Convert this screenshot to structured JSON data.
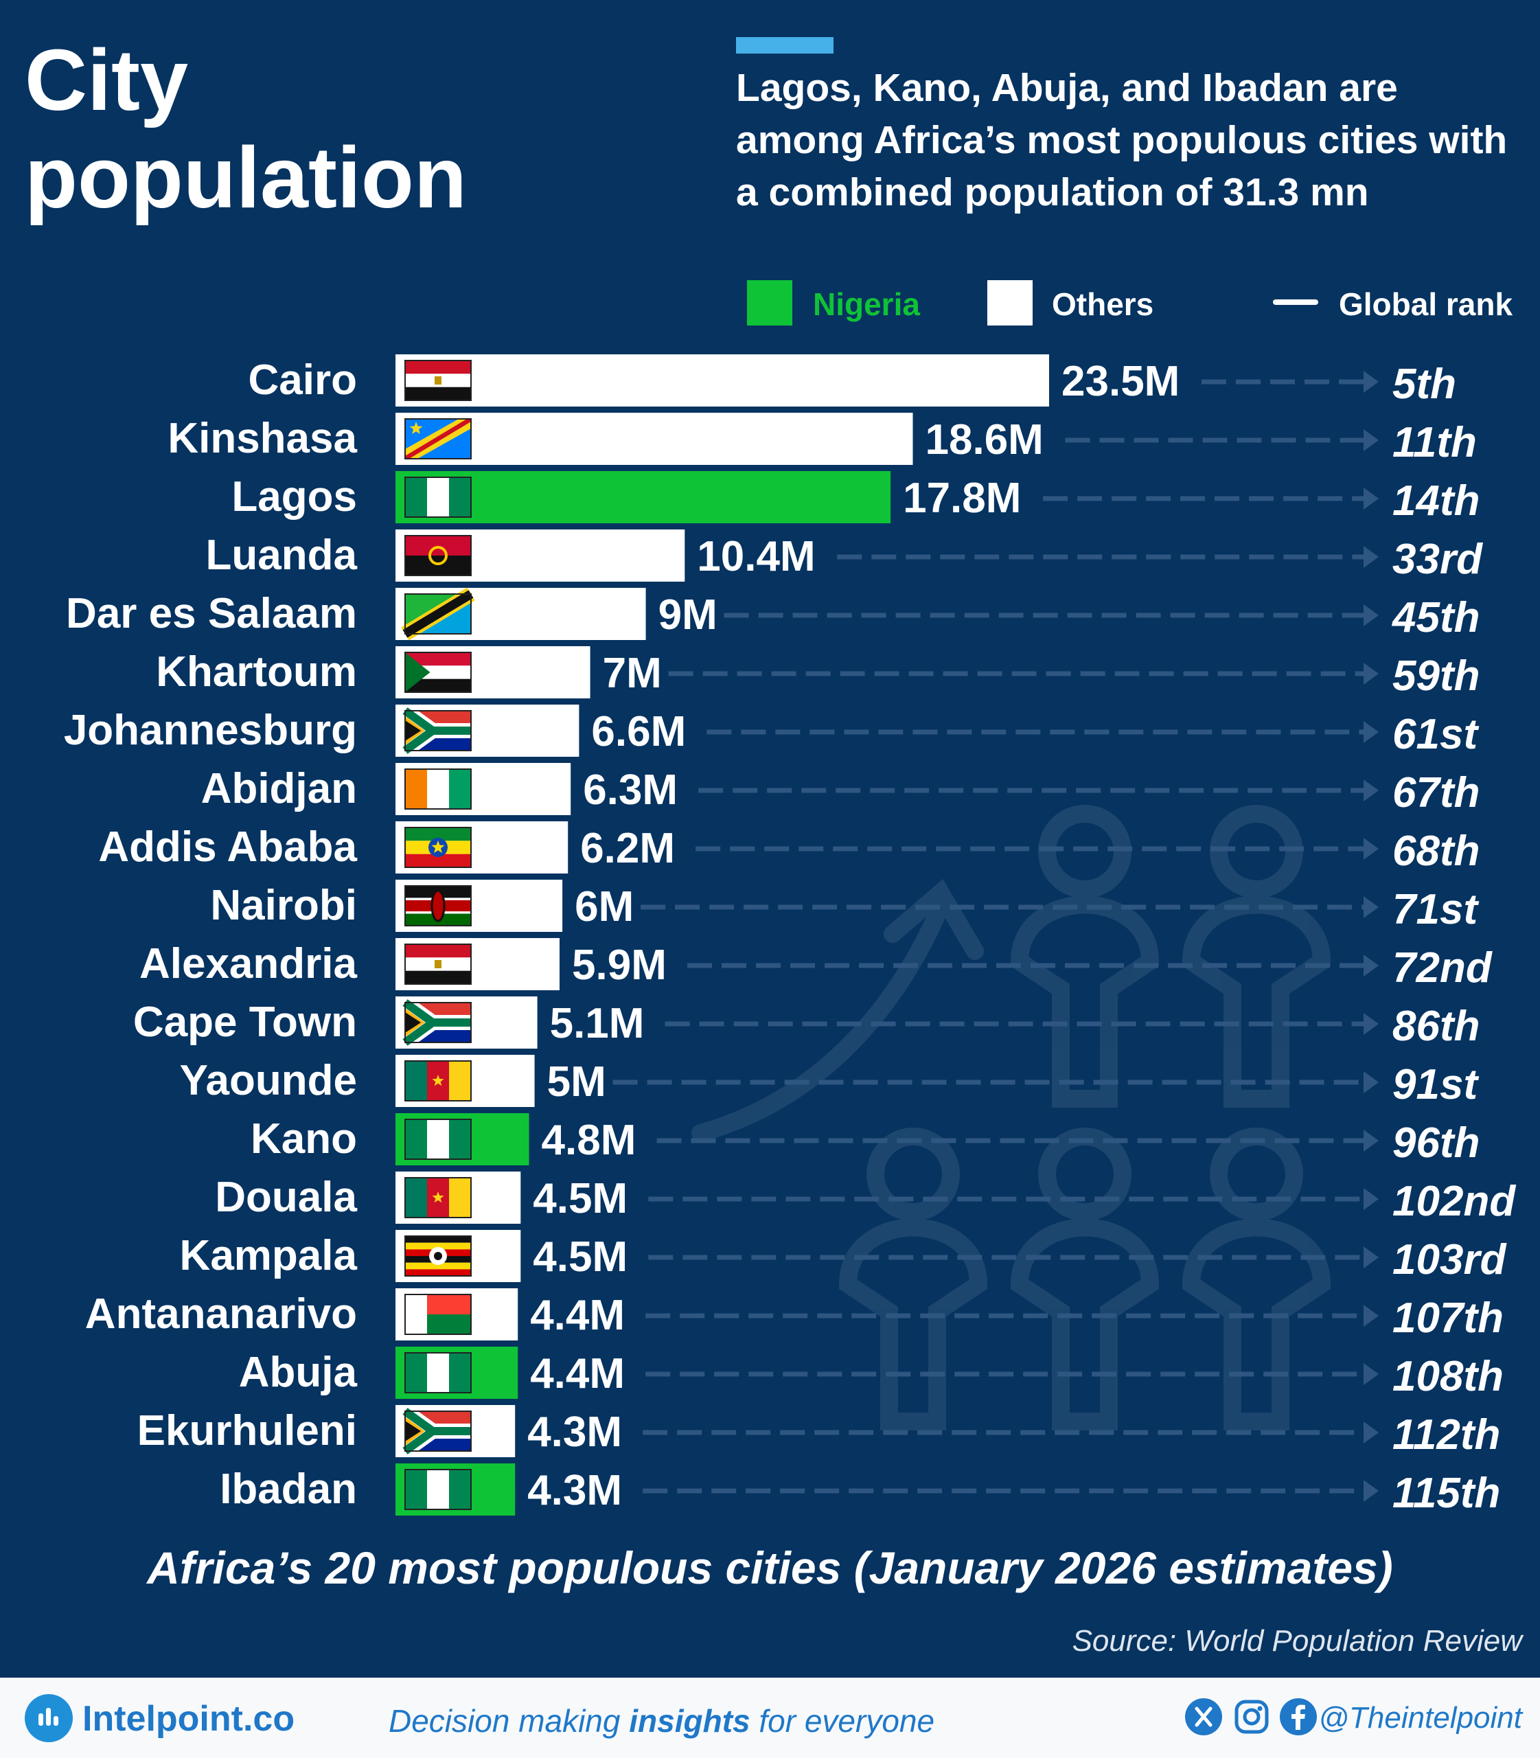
{
  "title_line1": "City",
  "title_line2": "population",
  "subtitle": "Lagos, Kano, Abuja, and Ibadan are among Africa’s most populous cities with a combined population of 31.3 mn",
  "legend": {
    "nigeria_label": "Nigeria",
    "others_label": "Others",
    "rank_label": "Global rank"
  },
  "colors": {
    "background": "#063360",
    "nigeria": "#0fc337",
    "others": "#ffffff",
    "subtitle_accent": "#46b0e8",
    "brand": "#1f78c8"
  },
  "chart_data": {
    "type": "bar",
    "orientation": "horizontal",
    "title": "City population",
    "categories": [
      "Cairo",
      "Kinshasa",
      "Lagos",
      "Luanda",
      "Dar es Salaam",
      "Khartoum",
      "Johannesburg",
      "Abidjan",
      "Addis Ababa",
      "Nairobi",
      "Alexandria",
      "Cape Town",
      "Yaounde",
      "Kano",
      "Douala",
      "Kampala",
      "Antananarivo",
      "Abuja",
      "Ekurhuleni",
      "Ibadan"
    ],
    "values": [
      23.5,
      18.6,
      17.8,
      10.4,
      9,
      7,
      6.6,
      6.3,
      6.2,
      6,
      5.9,
      5.1,
      5,
      4.8,
      4.5,
      4.5,
      4.4,
      4.4,
      4.3,
      4.3
    ],
    "unit": "million",
    "value_labels": [
      "23.5M",
      "18.6M",
      "17.8M",
      "10.4M",
      "9M",
      "7M",
      "6.6M",
      "6.3M",
      "6.2M",
      "6M",
      "5.9M",
      "5.1M",
      "5M",
      "4.8M",
      "4.5M",
      "4.5M",
      "4.4M",
      "4.4M",
      "4.3M",
      "4.3M"
    ],
    "global_rank": [
      "5th",
      "11th",
      "14th",
      "33rd",
      "45th",
      "59th",
      "61st",
      "67th",
      "68th",
      "71st",
      "72nd",
      "86th",
      "91st",
      "96th",
      "102nd",
      "103rd",
      "107th",
      "108th",
      "112th",
      "115th"
    ],
    "country": [
      "Egypt",
      "DR Congo",
      "Nigeria",
      "Angola",
      "Tanzania",
      "Sudan",
      "South Africa",
      "Ivory Coast",
      "Ethiopia",
      "Kenya",
      "Egypt",
      "South Africa",
      "Cameroon",
      "Nigeria",
      "Cameroon",
      "Uganda",
      "Madagascar",
      "Nigeria",
      "South Africa",
      "Nigeria"
    ],
    "series_group": [
      "Others",
      "Others",
      "Nigeria",
      "Others",
      "Others",
      "Others",
      "Others",
      "Others",
      "Others",
      "Others",
      "Others",
      "Others",
      "Others",
      "Nigeria",
      "Others",
      "Others",
      "Others",
      "Nigeria",
      "Others",
      "Nigeria"
    ],
    "xlabel": "",
    "ylabel": "",
    "xlim": [
      0,
      23.5
    ]
  },
  "footnote": "Africa’s 20 most populous cities (January 2026 estimates)",
  "source": "Source: World Population Review",
  "footer": {
    "brand": "Intelpoint.co",
    "tagline_pre": "Decision making ",
    "tagline_bold": "insights",
    "tagline_post": " for everyone",
    "handle": "@Theintelpoint",
    "social_icons": [
      "x-icon",
      "instagram-icon",
      "facebook-icon"
    ]
  }
}
